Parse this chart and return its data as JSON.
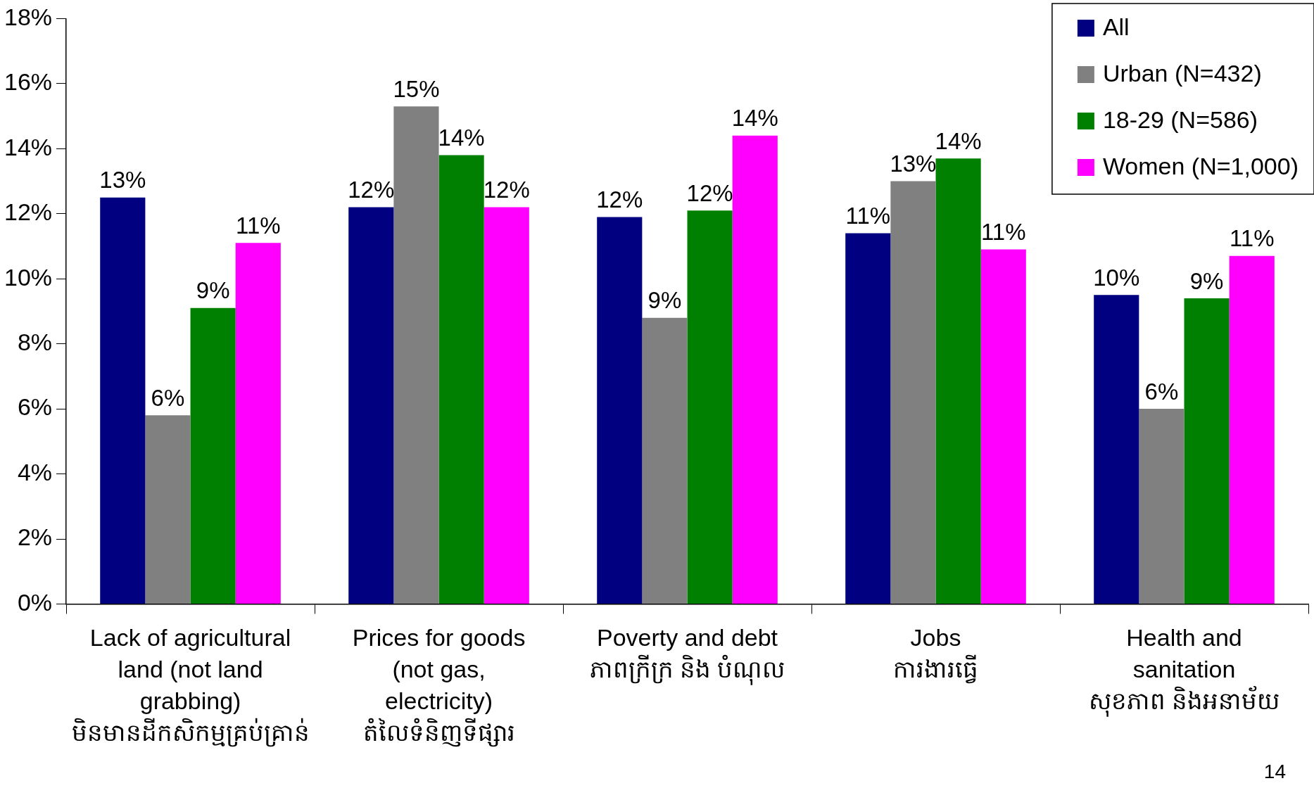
{
  "chart_data": {
    "type": "bar",
    "categories": [
      "Lack of agricultural\nland (not land\ngrabbing)\nមិនមានដីកសិកម្មគ្រប់គ្រាន់",
      "Prices for goods\n(not gas,\nelectricity)\nតំលៃទំនិញទីផ្សារ",
      "Poverty and debt\nភាពក្រីក្រ និង បំណុល",
      "Jobs\nការងារធ្វើ",
      "Health and\nsanitation\nសុខភាព និងអនាម័យ"
    ],
    "series": [
      {
        "name": "All",
        "color": "#000080",
        "values": [
          12.5,
          12.2,
          11.9,
          11.4,
          9.5
        ],
        "value_labels": [
          "13%",
          "12%",
          "12%",
          "11%",
          "10%"
        ]
      },
      {
        "name": "Urban (N=432)",
        "color": "#808080",
        "values": [
          5.8,
          15.3,
          8.8,
          13.0,
          6.0
        ],
        "value_labels": [
          "6%",
          "15%",
          "9%",
          "13%",
          "6%"
        ]
      },
      {
        "name": "18-29 (N=586)",
        "color": "#008000",
        "values": [
          9.1,
          13.8,
          12.1,
          13.7,
          9.4
        ],
        "value_labels": [
          "9%",
          "14%",
          "12%",
          "14%",
          "9%"
        ]
      },
      {
        "name": "Women (N=1,000)",
        "color": "#ff00ff",
        "values": [
          11.1,
          12.2,
          14.4,
          10.9,
          10.7
        ],
        "value_labels": [
          "11%",
          "12%",
          "14%",
          "11%",
          "11%"
        ]
      }
    ],
    "ylim": [
      0,
      18
    ],
    "yticks": [
      {
        "value": 0,
        "label": "0%"
      },
      {
        "value": 2,
        "label": "2%"
      },
      {
        "value": 4,
        "label": "4%"
      },
      {
        "value": 6,
        "label": "6%"
      },
      {
        "value": 8,
        "label": "8%"
      },
      {
        "value": 10,
        "label": "10%"
      },
      {
        "value": 12,
        "label": "12%"
      },
      {
        "value": 14,
        "label": "14%"
      },
      {
        "value": 16,
        "label": "16%"
      },
      {
        "value": 18,
        "label": "18%"
      }
    ],
    "grid": false,
    "legend": "top right",
    "annotations": [
      "14"
    ]
  }
}
